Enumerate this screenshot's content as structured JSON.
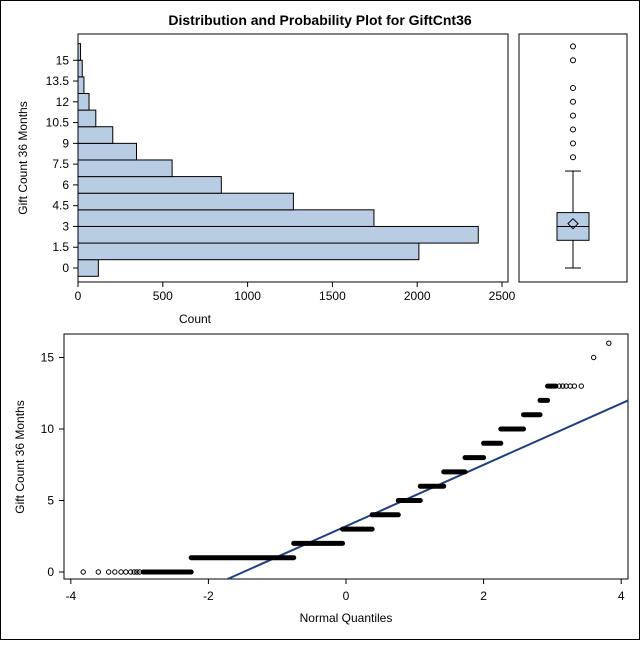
{
  "page": {
    "title": "Distribution and Probability Plot for GiftCnt36"
  },
  "chart_data": [
    {
      "type": "bar",
      "orientation": "horizontal",
      "xlabel": "Count",
      "ylabel": "Gift Count 36 Months",
      "xlim": [
        0,
        2500
      ],
      "x_ticks": [
        "0",
        "500",
        "1000",
        "1500",
        "2000",
        "2500"
      ],
      "y_ticks": [
        "0",
        "1.5",
        "3",
        "4.5",
        "6",
        "7.5",
        "9",
        "10.5",
        "12",
        "13.5",
        "15"
      ],
      "bin_width": 1.2,
      "bins": [
        {
          "mid": 0.0,
          "count": 120
        },
        {
          "mid": 1.2,
          "count": 2010
        },
        {
          "mid": 2.4,
          "count": 2360
        },
        {
          "mid": 3.6,
          "count": 1745
        },
        {
          "mid": 4.8,
          "count": 1270
        },
        {
          "mid": 6.0,
          "count": 845
        },
        {
          "mid": 7.2,
          "count": 555
        },
        {
          "mid": 8.4,
          "count": 345
        },
        {
          "mid": 9.6,
          "count": 205
        },
        {
          "mid": 10.8,
          "count": 105
        },
        {
          "mid": 12.0,
          "count": 65
        },
        {
          "mid": 13.2,
          "count": 35
        },
        {
          "mid": 14.4,
          "count": 25
        },
        {
          "mid": 15.6,
          "count": 15
        }
      ],
      "bar_fill": "#b8cce4",
      "bar_stroke": "#000000"
    },
    {
      "type": "boxplot",
      "min": 0,
      "q1": 2,
      "median": 3,
      "mean": 3.2,
      "q3": 4,
      "whisker_high": 7,
      "outliers": [
        8,
        9,
        10,
        11,
        12,
        13,
        15,
        16
      ],
      "box_fill": "#b8cce4"
    },
    {
      "type": "scatter",
      "subtype": "normal-qq",
      "xlabel": "Normal Quantiles",
      "ylabel": "Gift Count 36 Months",
      "xlim": [
        -4.2,
        4.1
      ],
      "ylim": [
        -0.6,
        16.5
      ],
      "x_ticks": [
        "-4",
        "-2",
        "0",
        "2",
        "4"
      ],
      "y_ticks": [
        "0",
        "5",
        "10",
        "15"
      ],
      "segments": [
        {
          "y": 0,
          "x": [
            -2.95,
            -2.25
          ]
        },
        {
          "y": 1,
          "x": [
            -2.25,
            -0.76
          ]
        },
        {
          "y": 2,
          "x": [
            -0.76,
            -0.05
          ]
        },
        {
          "y": 3,
          "x": [
            -0.05,
            0.38
          ]
        },
        {
          "y": 4,
          "x": [
            0.38,
            0.76
          ]
        },
        {
          "y": 5,
          "x": [
            0.76,
            1.08
          ]
        },
        {
          "y": 6,
          "x": [
            1.08,
            1.42
          ]
        },
        {
          "y": 7,
          "x": [
            1.42,
            1.73
          ]
        },
        {
          "y": 8,
          "x": [
            1.73,
            2.0
          ]
        },
        {
          "y": 9,
          "x": [
            2.0,
            2.25
          ]
        },
        {
          "y": 10,
          "x": [
            2.25,
            2.58
          ]
        },
        {
          "y": 11,
          "x": [
            2.58,
            2.82
          ]
        },
        {
          "y": 12,
          "x": [
            2.82,
            2.93
          ]
        },
        {
          "y": 13,
          "x": [
            2.93,
            3.05
          ]
        }
      ],
      "points": [
        {
          "x": -3.82,
          "y": 0
        },
        {
          "x": -3.6,
          "y": 0
        },
        {
          "x": -3.45,
          "y": 0
        },
        {
          "x": -3.36,
          "y": 0
        },
        {
          "x": -3.27,
          "y": 0
        },
        {
          "x": -3.2,
          "y": 0
        },
        {
          "x": -3.13,
          "y": 0
        },
        {
          "x": -3.08,
          "y": 0
        },
        {
          "x": -3.04,
          "y": 0
        },
        {
          "x": -3.0,
          "y": 0
        },
        {
          "x": 3.1,
          "y": 13
        },
        {
          "x": 3.15,
          "y": 13
        },
        {
          "x": 3.2,
          "y": 13
        },
        {
          "x": 3.26,
          "y": 13
        },
        {
          "x": 3.32,
          "y": 13
        },
        {
          "x": 3.42,
          "y": 13
        },
        {
          "x": 3.6,
          "y": 15
        },
        {
          "x": 3.82,
          "y": 16
        }
      ],
      "ref_line": {
        "x1": -1.72,
        "y1": -0.6,
        "x2": 4.1,
        "y2": 12.0,
        "color": "#1f3f7f"
      }
    }
  ]
}
